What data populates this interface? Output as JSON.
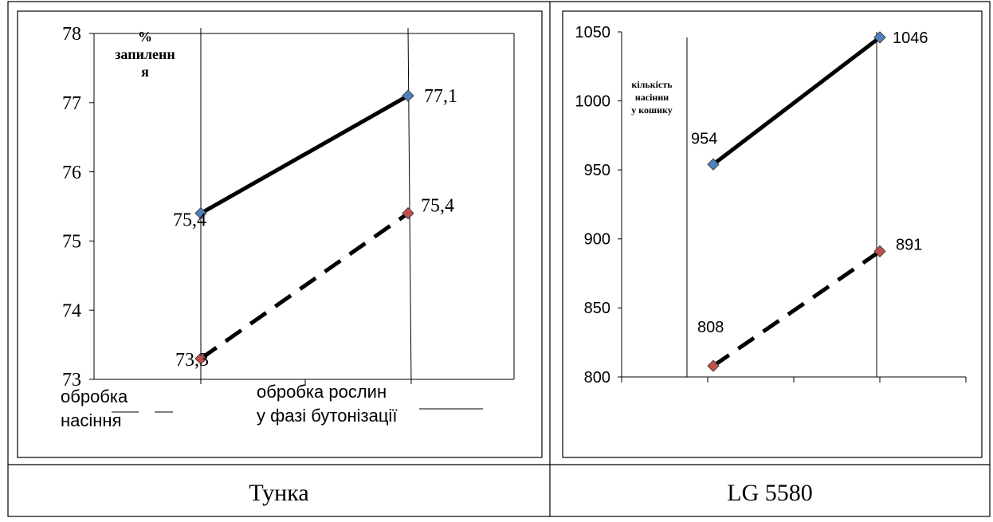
{
  "table": {
    "captions": [
      "Тунка",
      "LG 5580"
    ]
  },
  "chart_data": [
    {
      "type": "line",
      "ylabel_lines": [
        "%",
        "запиленн",
        "я"
      ],
      "ylim": [
        73,
        78
      ],
      "yticks": [
        "73",
        "74",
        "75",
        "76",
        "77",
        "78"
      ],
      "categories": [
        "обробка насіння",
        "обробка рослин у фазі бутонізації"
      ],
      "category_lines": [
        [
          "обробка",
          "насіння"
        ],
        [
          "обробка рослин",
          "у фазі бутонізації"
        ]
      ],
      "grid": false,
      "series": [
        {
          "values": [
            75.4,
            77.1
          ],
          "labels": [
            "75,4",
            "77,1"
          ],
          "color": "#4f81bd",
          "style": "solid"
        },
        {
          "values": [
            73.3,
            75.4
          ],
          "labels": [
            "73,3",
            "75,4"
          ],
          "color": "#c0504d",
          "style": "dashed"
        }
      ]
    },
    {
      "type": "line",
      "ylabel_lines": [
        "кількість",
        "насінин",
        "у кошику"
      ],
      "ylim": [
        800,
        1050
      ],
      "yticks": [
        "800",
        "850",
        "900",
        "950",
        "1000",
        "1050"
      ],
      "categories": [
        "",
        ""
      ],
      "grid": false,
      "series": [
        {
          "values": [
            954,
            1046
          ],
          "labels": [
            "954",
            "1046"
          ],
          "color": "#4f81bd",
          "style": "solid"
        },
        {
          "values": [
            808,
            891
          ],
          "labels": [
            "808",
            "891"
          ],
          "color": "#c0504d",
          "style": "dashed"
        }
      ]
    }
  ]
}
